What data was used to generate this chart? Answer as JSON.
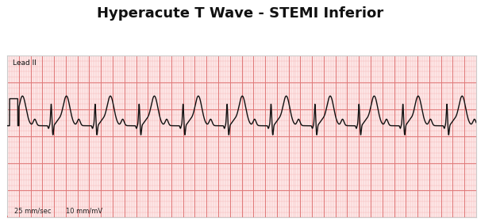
{
  "title": "Hyperacute T Wave - STEMI Inferior",
  "title_fontsize": 13,
  "title_fontweight": "bold",
  "lead_label": "Lead II",
  "bottom_left": "25 mm/sec",
  "bottom_right": "10 mm/mV",
  "grid_minor_color": "#f5b8b8",
  "grid_major_color": "#e07878",
  "ecg_color": "#111111",
  "border_color": "#cccccc",
  "paper_bg": "#fde8e8",
  "outer_bg": "#ffffff",
  "xlim": [
    0,
    8.0
  ],
  "ylim": [
    -1.5,
    1.5
  ],
  "heart_rate_bpm": 80,
  "ecg_linewidth": 1.0,
  "baseline_y": 0.2
}
